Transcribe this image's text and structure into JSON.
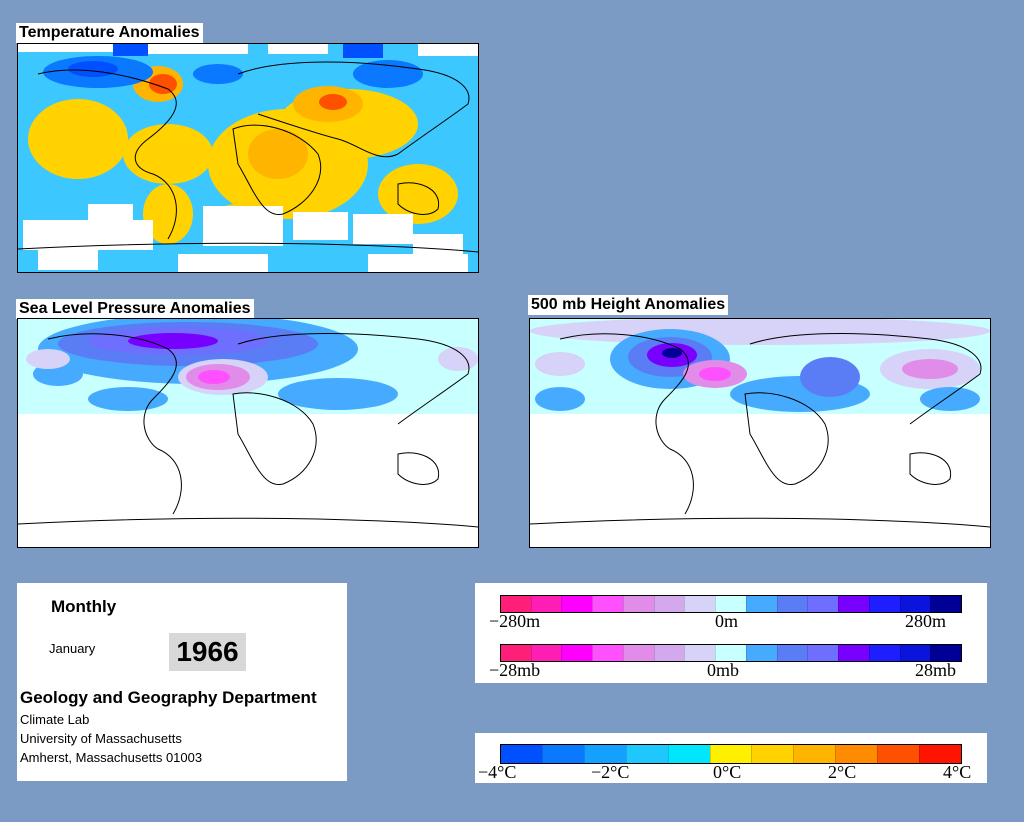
{
  "maps": {
    "temperature": {
      "title": "Temperature Anomalies"
    },
    "slp": {
      "title": "Sea Level Pressure Anomalies"
    },
    "height500": {
      "title": "500 mb Height Anomalies"
    }
  },
  "info": {
    "period": "Monthly",
    "month": "January",
    "year": "1966",
    "department": "Geology and Geography Department",
    "lab": "Climate Lab",
    "university": "University of Massachusetts",
    "address": "Amherst, Massachusetts 01003"
  },
  "legends": {
    "height": {
      "left": "−280m",
      "center": "0m",
      "right": "280m"
    },
    "pressure": {
      "left": "−28mb",
      "center": "0mb",
      "right": "28mb"
    },
    "temperature": {
      "t1": "−4°C",
      "t2": "−2°C",
      "t3": "0°C",
      "t4": "2°C",
      "t5": "4°C"
    }
  },
  "colors": {
    "background": "#7b9ac4",
    "pressure_height_scale": [
      "#ff1e78",
      "#ff1eb4",
      "#ff00ff",
      "#ff50ff",
      "#e08ce8",
      "#d4a8ec",
      "#d6d2f8",
      "#c8ffff",
      "#46aaff",
      "#5a7df5",
      "#6e6eff",
      "#7800ff",
      "#1e1eff",
      "#0a14dc",
      "#000096"
    ],
    "temperature_scale": [
      "#0050ff",
      "#0a78ff",
      "#14a0ff",
      "#1ec8ff",
      "#00e6ff",
      "#fff000",
      "#ffd200",
      "#ffb400",
      "#ff8c00",
      "#ff5000",
      "#ff1400"
    ]
  }
}
